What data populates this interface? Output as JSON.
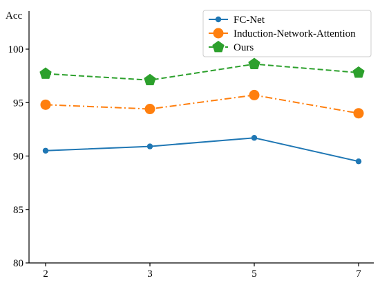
{
  "chart_data": {
    "type": "line",
    "title": "",
    "xlabel": "",
    "ylabel": "Acc",
    "x": [
      "2",
      "3",
      "5",
      "7"
    ],
    "ylim": [
      80,
      100
    ],
    "yticks": [
      "80",
      "85",
      "90",
      "95",
      "100"
    ],
    "grid": false,
    "legend_position": "top-right",
    "series": [
      {
        "name": "FC-Net",
        "values": [
          90.5,
          90.9,
          91.7,
          89.5
        ],
        "color": "#1f77b4",
        "marker": "circle",
        "line_style": "solid"
      },
      {
        "name": "Induction-Network-Attention",
        "values": [
          94.8,
          94.4,
          95.7,
          94.0
        ],
        "color": "#ff7f0e",
        "marker": "circle-large",
        "line_style": "dash-dot"
      },
      {
        "name": "Ours",
        "values": [
          97.7,
          97.1,
          98.6,
          97.8
        ],
        "color": "#2ca02c",
        "marker": "pentagon",
        "line_style": "dashed"
      }
    ]
  }
}
